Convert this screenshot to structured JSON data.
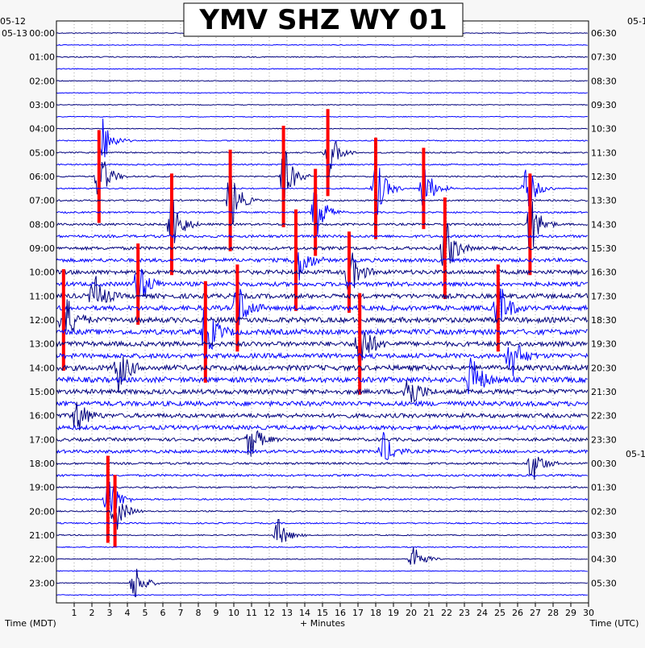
{
  "title": "YMV SHZ WY 01",
  "date_labels": {
    "left_top": "05-12",
    "left_start": "05-13",
    "right_top": "05-1",
    "right_mid": "05-1"
  },
  "axis": {
    "xlabel": "+ Minutes",
    "left_label": "Time (MDT)",
    "right_label": "Time (UTC)"
  },
  "colors": {
    "background": "#f7f7f7",
    "plot_bg": "#ffffff",
    "trace_palette": [
      "#00007f",
      "#0000ff",
      "#00007f",
      "#0000ff"
    ],
    "clip": "#ff0000",
    "grid": "#000000"
  },
  "chart_data": {
    "type": "line",
    "description_free": true,
    "x_ticks": [
      "1",
      "2",
      "3",
      "4",
      "5",
      "6",
      "7",
      "8",
      "9",
      "10",
      "11",
      "12",
      "13",
      "14",
      "15",
      "16",
      "17",
      "18",
      "19",
      "20",
      "21",
      "22",
      "23",
      "24",
      "25",
      "26",
      "27",
      "28",
      "29",
      "30"
    ],
    "xlim": [
      0,
      30
    ],
    "rows_per_hour": 2,
    "row_count": 48,
    "left_hour_labels": [
      "00:00",
      "01:00",
      "02:00",
      "03:00",
      "04:00",
      "05:00",
      "06:00",
      "07:00",
      "08:00",
      "09:00",
      "10:00",
      "11:00",
      "12:00",
      "13:00",
      "14:00",
      "15:00",
      "16:00",
      "17:00",
      "18:00",
      "19:00",
      "20:00",
      "21:00",
      "22:00",
      "23:00"
    ],
    "right_hour_labels": [
      "06:30",
      "07:30",
      "08:30",
      "09:30",
      "10:30",
      "11:30",
      "12:30",
      "13:30",
      "14:30",
      "15:30",
      "16:30",
      "17:30",
      "18:30",
      "19:30",
      "20:30",
      "21:30",
      "22:30",
      "23:30",
      "00:30",
      "01:30",
      "02:30",
      "03:30",
      "04:30",
      "05:30"
    ],
    "row_noise_level": [
      0.3,
      0.3,
      0.4,
      0.3,
      0.3,
      0.3,
      0.3,
      0.3,
      0.3,
      0.4,
      0.5,
      0.5,
      0.5,
      0.5,
      0.6,
      0.6,
      0.8,
      1.0,
      1.2,
      1.4,
      1.6,
      1.6,
      1.8,
      1.8,
      2.0,
      2.0,
      1.8,
      1.8,
      2.0,
      2.0,
      1.8,
      1.8,
      1.6,
      1.6,
      1.2,
      1.2,
      0.8,
      0.8,
      0.6,
      0.6,
      0.5,
      0.5,
      0.4,
      0.4,
      0.3,
      0.3,
      0.3,
      0.3
    ],
    "events": [
      {
        "row": 9,
        "minute": 2.6,
        "amp": 2.5,
        "clip": false
      },
      {
        "row": 10,
        "minute": 15.3,
        "amp": 3.0,
        "clip": true
      },
      {
        "row": 12,
        "minute": 2.4,
        "amp": 3.2,
        "clip": true
      },
      {
        "row": 12,
        "minute": 12.8,
        "amp": 3.5,
        "clip": true
      },
      {
        "row": 13,
        "minute": 18.0,
        "amp": 3.5,
        "clip": true
      },
      {
        "row": 13,
        "minute": 20.7,
        "amp": 2.8,
        "clip": true
      },
      {
        "row": 13,
        "minute": 26.5,
        "amp": 2.6,
        "clip": false
      },
      {
        "row": 14,
        "minute": 9.8,
        "amp": 3.5,
        "clip": true
      },
      {
        "row": 15,
        "minute": 14.6,
        "amp": 3.0,
        "clip": true
      },
      {
        "row": 16,
        "minute": 6.5,
        "amp": 3.5,
        "clip": true
      },
      {
        "row": 16,
        "minute": 26.7,
        "amp": 3.5,
        "clip": true
      },
      {
        "row": 18,
        "minute": 21.9,
        "amp": 3.5,
        "clip": true
      },
      {
        "row": 19,
        "minute": 13.5,
        "amp": 3.5,
        "clip": true
      },
      {
        "row": 20,
        "minute": 16.5,
        "amp": 2.8,
        "clip": true
      },
      {
        "row": 21,
        "minute": 4.6,
        "amp": 2.8,
        "clip": true
      },
      {
        "row": 22,
        "minute": 2.1,
        "amp": 2.5,
        "clip": false
      },
      {
        "row": 23,
        "minute": 10.2,
        "amp": 3.0,
        "clip": true
      },
      {
        "row": 23,
        "minute": 24.9,
        "amp": 3.0,
        "clip": true
      },
      {
        "row": 24,
        "minute": 0.4,
        "amp": 3.5,
        "clip": true
      },
      {
        "row": 25,
        "minute": 8.4,
        "amp": 3.5,
        "clip": true
      },
      {
        "row": 26,
        "minute": 17.1,
        "amp": 3.5,
        "clip": true
      },
      {
        "row": 27,
        "minute": 25.6,
        "amp": 2.8,
        "clip": false
      },
      {
        "row": 28,
        "minute": 3.5,
        "amp": 2.5,
        "clip": false
      },
      {
        "row": 29,
        "minute": 23.4,
        "amp": 2.8,
        "clip": false
      },
      {
        "row": 30,
        "minute": 19.8,
        "amp": 2.5,
        "clip": false
      },
      {
        "row": 32,
        "minute": 1.1,
        "amp": 2.2,
        "clip": false
      },
      {
        "row": 34,
        "minute": 10.9,
        "amp": 2.2,
        "clip": false
      },
      {
        "row": 35,
        "minute": 18.4,
        "amp": 2.0,
        "clip": false
      },
      {
        "row": 36,
        "minute": 26.8,
        "amp": 2.2,
        "clip": false
      },
      {
        "row": 39,
        "minute": 2.9,
        "amp": 3.0,
        "clip": true
      },
      {
        "row": 40,
        "minute": 3.3,
        "amp": 2.5,
        "clip": true
      },
      {
        "row": 42,
        "minute": 12.5,
        "amp": 1.8,
        "clip": false
      },
      {
        "row": 44,
        "minute": 20.1,
        "amp": 1.8,
        "clip": false
      },
      {
        "row": 46,
        "minute": 4.4,
        "amp": 2.2,
        "clip": false
      }
    ]
  }
}
